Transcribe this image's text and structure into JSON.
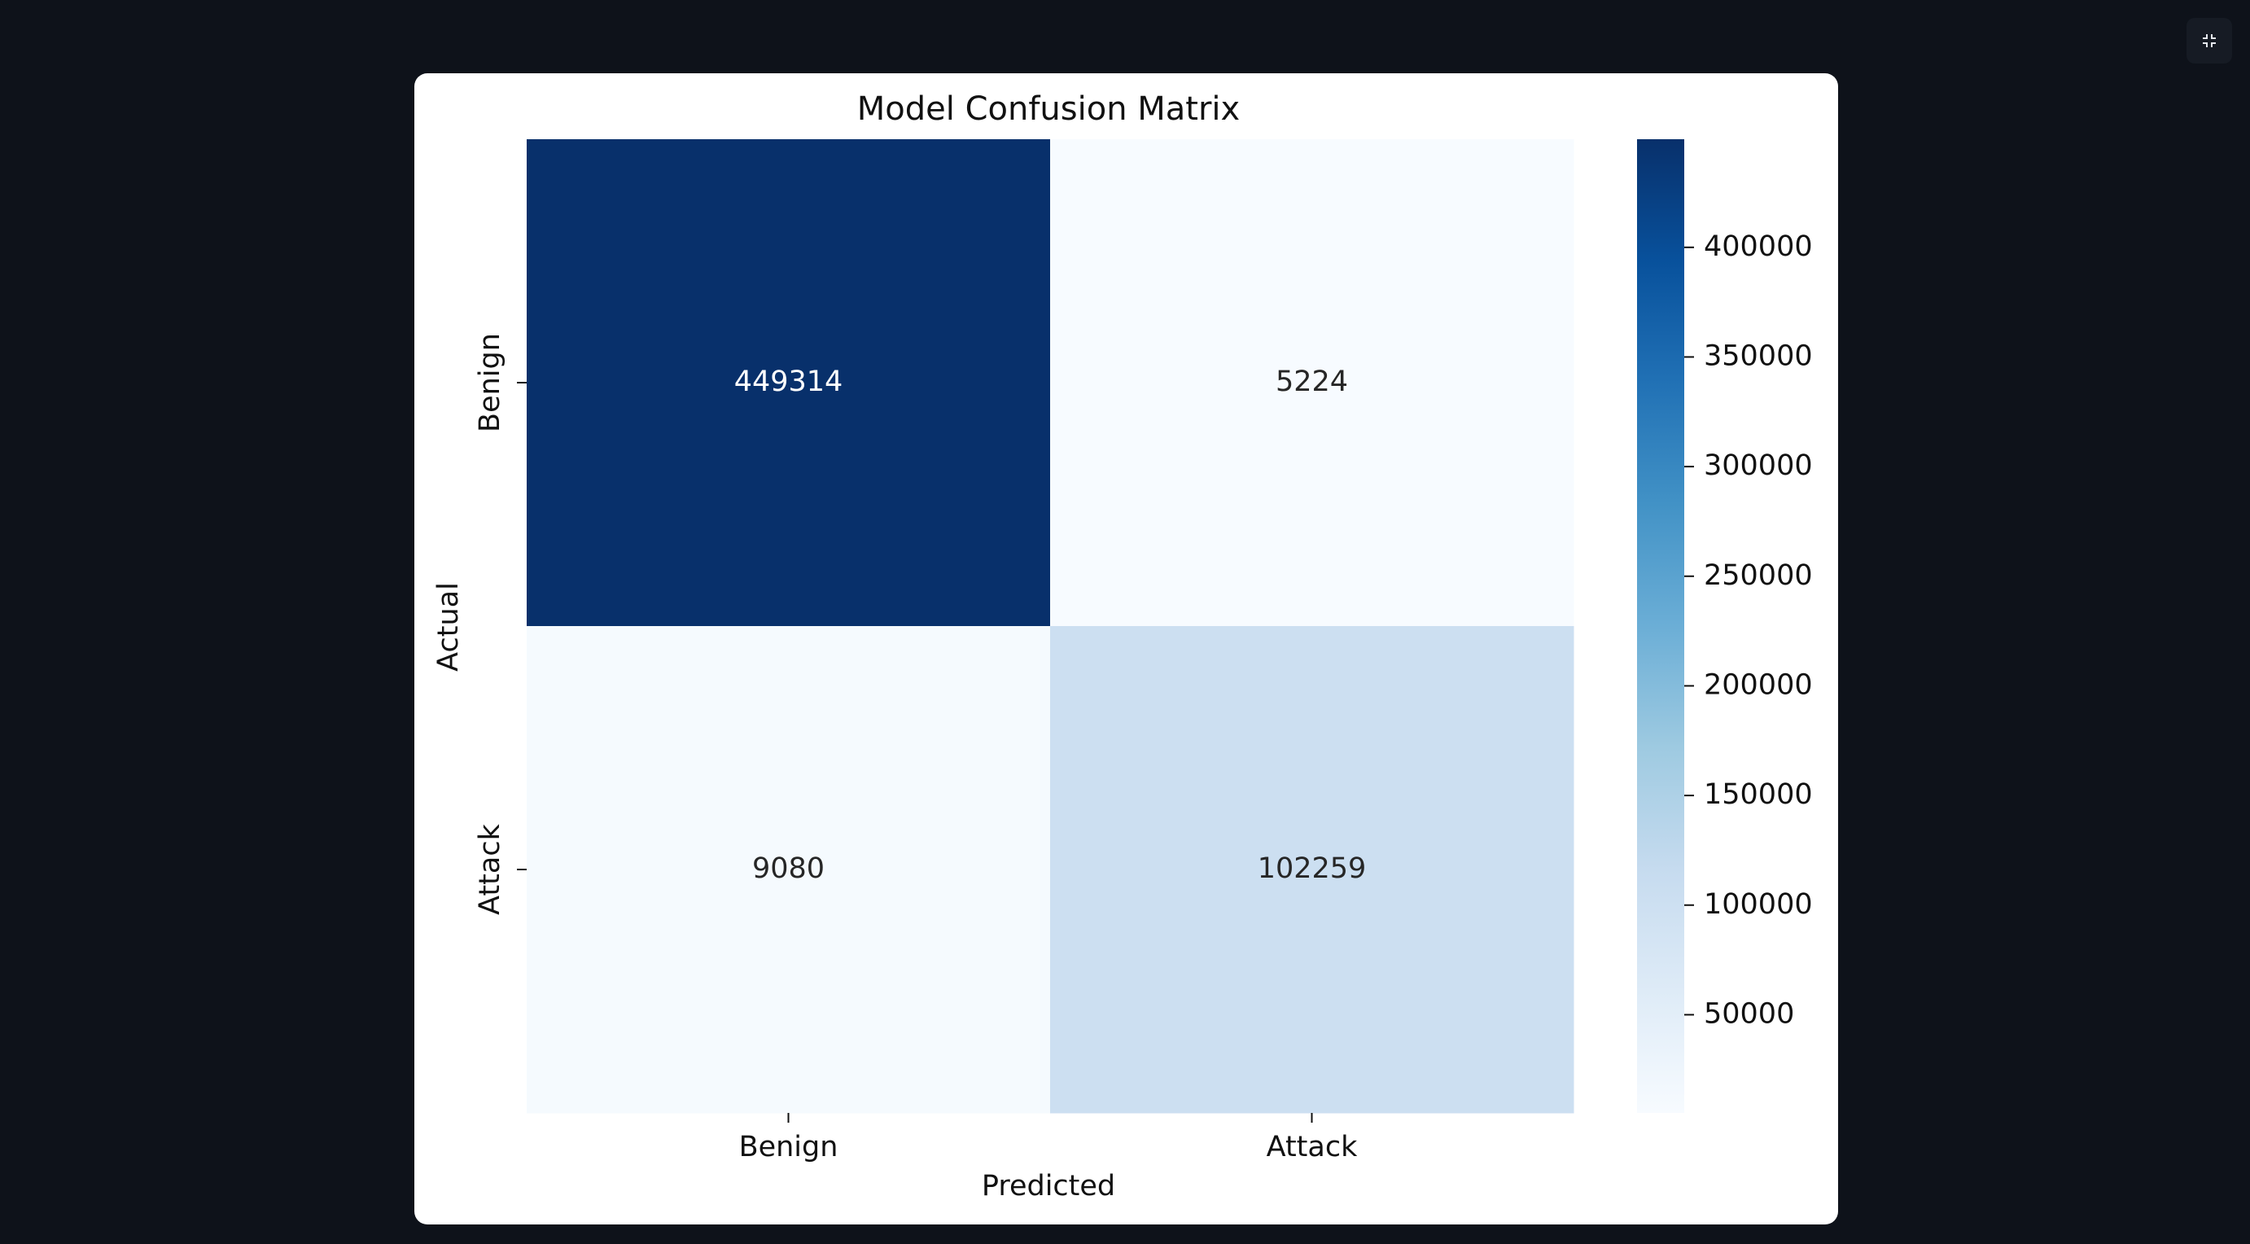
{
  "viewer": {
    "exit_fullscreen_icon": "exit-fullscreen-icon"
  },
  "chart_data": {
    "type": "heatmap",
    "title": "Model Confusion Matrix",
    "xlabel": "Predicted",
    "ylabel": "Actual",
    "x_categories": [
      "Benign",
      "Attack"
    ],
    "y_categories": [
      "Benign",
      "Attack"
    ],
    "matrix": [
      [
        449314,
        5224
      ],
      [
        9080,
        102259
      ]
    ],
    "colormap": "Blues",
    "colorbar": {
      "ticks": [
        50000,
        100000,
        150000,
        200000,
        250000,
        300000,
        350000,
        400000
      ],
      "range": [
        5224,
        449314
      ]
    },
    "grid": false,
    "legend": "colorbar-right"
  }
}
